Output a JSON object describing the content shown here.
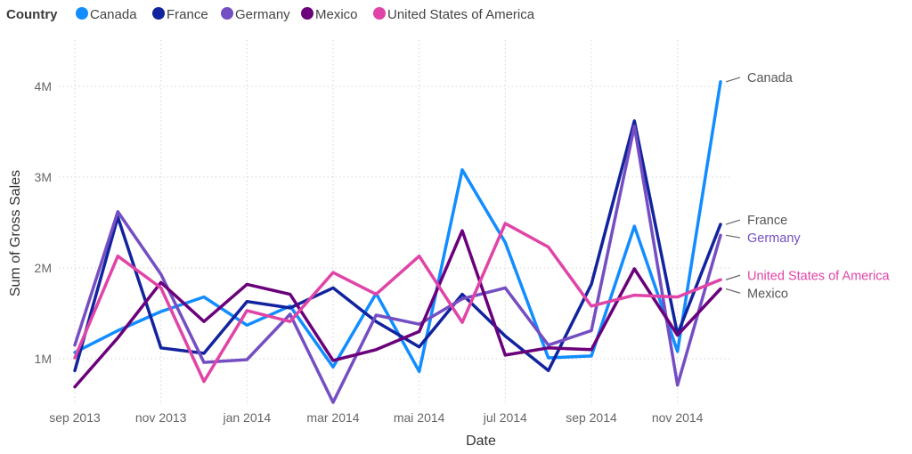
{
  "chart_data": {
    "type": "line",
    "xlabel": "Date",
    "ylabel": "Sum of Gross Sales",
    "legend_title": "Country",
    "legend_position": "top-left",
    "ylim": [
      500000,
      4500000
    ],
    "y_ticks": [
      {
        "value": 1000000,
        "label": "1M"
      },
      {
        "value": 2000000,
        "label": "2M"
      },
      {
        "value": 3000000,
        "label": "3M"
      },
      {
        "value": 4000000,
        "label": "4M"
      }
    ],
    "x_tick_labels": [
      {
        "index": 0,
        "label": "sep 2013"
      },
      {
        "index": 2,
        "label": "nov 2013"
      },
      {
        "index": 4,
        "label": "jan 2014"
      },
      {
        "index": 6,
        "label": "mar 2014"
      },
      {
        "index": 8,
        "label": "mai 2014"
      },
      {
        "index": 10,
        "label": "jul 2014"
      },
      {
        "index": 12,
        "label": "sep 2014"
      },
      {
        "index": 14,
        "label": "nov 2014"
      }
    ],
    "x": [
      "sep 2013",
      "okt 2013",
      "nov 2013",
      "dec 2013",
      "jan 2014",
      "feb 2014",
      "mar 2014",
      "apr 2014",
      "mai 2014",
      "jun 2014",
      "jul 2014",
      "aug 2014",
      "sep 2014",
      "okt 2014",
      "nov 2014",
      "dec 2014"
    ],
    "series": [
      {
        "name": "Canada",
        "color": "#118DFF",
        "end_label_color": "#555555",
        "values": [
          1070000,
          1310000,
          1520000,
          1680000,
          1370000,
          1580000,
          910000,
          1720000,
          860000,
          3080000,
          2280000,
          1010000,
          1030000,
          2460000,
          1080000,
          4050000
        ]
      },
      {
        "name": "France",
        "color": "#12239E",
        "end_label_color": "#555555",
        "values": [
          870000,
          2560000,
          1120000,
          1060000,
          1630000,
          1560000,
          1780000,
          1410000,
          1130000,
          1710000,
          1250000,
          870000,
          1820000,
          3620000,
          1270000,
          2480000
        ]
      },
      {
        "name": "Germany",
        "color": "#744EC2",
        "end_label_color": "#744EC2",
        "values": [
          1150000,
          2620000,
          1930000,
          960000,
          990000,
          1490000,
          520000,
          1480000,
          1380000,
          1660000,
          1780000,
          1150000,
          1310000,
          3560000,
          710000,
          2360000
        ]
      },
      {
        "name": "Mexico",
        "color": "#6B007B",
        "end_label_color": "#555555",
        "values": [
          690000,
          1230000,
          1840000,
          1410000,
          1820000,
          1710000,
          980000,
          1100000,
          1300000,
          2410000,
          1040000,
          1120000,
          1100000,
          1990000,
          1260000,
          1770000
        ]
      },
      {
        "name": "United States of America",
        "color": "#E044A7",
        "end_label_color": "#E044A7",
        "values": [
          1010000,
          2130000,
          1780000,
          750000,
          1530000,
          1410000,
          1950000,
          1710000,
          2130000,
          1400000,
          2490000,
          2230000,
          1580000,
          1700000,
          1680000,
          1870000
        ]
      }
    ]
  }
}
